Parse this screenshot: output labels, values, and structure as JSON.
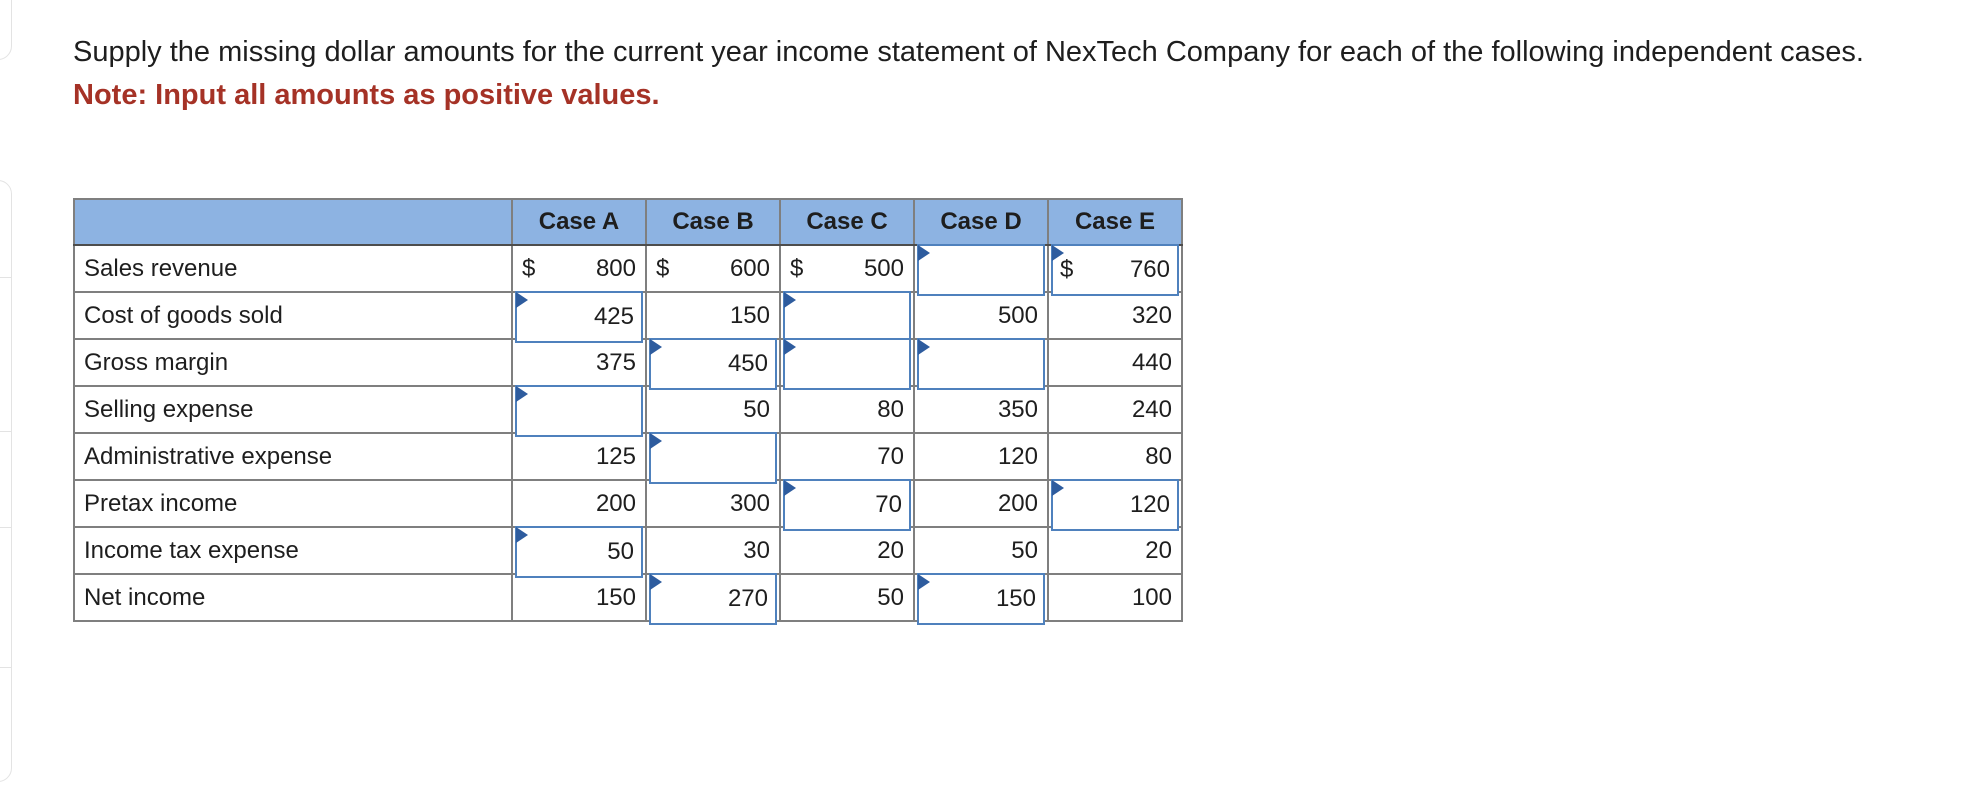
{
  "instructions": {
    "text": "Supply the missing dollar amounts for the current year income statement of NexTech Company for each of the following independent cases.",
    "note": "Note: Input all amounts as positive values."
  },
  "colors": {
    "header_bg": "#8DB3E2",
    "grid_line": "#7F7F7F",
    "outer_border": "#4D4D4D",
    "input_border": "#4F81BD",
    "flag_blue": "#2E5C9E",
    "note_red": "#A53226"
  },
  "table": {
    "corner_label": "",
    "columns": [
      "Case A",
      "Case B",
      "Case C",
      "Case D",
      "Case E"
    ],
    "rows": [
      {
        "label": "Sales revenue",
        "cells": [
          {
            "dollar": "$",
            "text": "800",
            "input": false
          },
          {
            "dollar": "$",
            "text": "600",
            "input": false
          },
          {
            "dollar": "$",
            "text": "500",
            "input": false
          },
          {
            "dollar": "",
            "text": "",
            "input": true
          },
          {
            "dollar": "$",
            "text": "760",
            "input": true
          }
        ]
      },
      {
        "label": "Cost of goods sold",
        "cells": [
          {
            "dollar": "",
            "text": "425",
            "input": true
          },
          {
            "dollar": "",
            "text": "150",
            "input": false
          },
          {
            "dollar": "",
            "text": "",
            "input": true
          },
          {
            "dollar": "",
            "text": "500",
            "input": false
          },
          {
            "dollar": "",
            "text": "320",
            "input": false
          }
        ]
      },
      {
        "label": "Gross margin",
        "cells": [
          {
            "dollar": "",
            "text": "375",
            "input": false
          },
          {
            "dollar": "",
            "text": "450",
            "input": true
          },
          {
            "dollar": "",
            "text": "",
            "input": true
          },
          {
            "dollar": "",
            "text": "",
            "input": true
          },
          {
            "dollar": "",
            "text": "440",
            "input": false
          }
        ]
      },
      {
        "label": "Selling expense",
        "cells": [
          {
            "dollar": "",
            "text": "",
            "input": true
          },
          {
            "dollar": "",
            "text": "50",
            "input": false
          },
          {
            "dollar": "",
            "text": "80",
            "input": false
          },
          {
            "dollar": "",
            "text": "350",
            "input": false
          },
          {
            "dollar": "",
            "text": "240",
            "input": false
          }
        ]
      },
      {
        "label": "Administrative expense",
        "cells": [
          {
            "dollar": "",
            "text": "125",
            "input": false
          },
          {
            "dollar": "",
            "text": "",
            "input": true
          },
          {
            "dollar": "",
            "text": "70",
            "input": false
          },
          {
            "dollar": "",
            "text": "120",
            "input": false
          },
          {
            "dollar": "",
            "text": "80",
            "input": false
          }
        ]
      },
      {
        "label": "Pretax income",
        "cells": [
          {
            "dollar": "",
            "text": "200",
            "input": false
          },
          {
            "dollar": "",
            "text": "300",
            "input": false
          },
          {
            "dollar": "",
            "text": "70",
            "input": true
          },
          {
            "dollar": "",
            "text": "200",
            "input": false
          },
          {
            "dollar": "",
            "text": "120",
            "input": true
          }
        ]
      },
      {
        "label": "Income tax expense",
        "cells": [
          {
            "dollar": "",
            "text": "50",
            "input": true
          },
          {
            "dollar": "",
            "text": "30",
            "input": false
          },
          {
            "dollar": "",
            "text": "20",
            "input": false
          },
          {
            "dollar": "",
            "text": "50",
            "input": false
          },
          {
            "dollar": "",
            "text": "20",
            "input": false
          }
        ]
      },
      {
        "label": "Net income",
        "cells": [
          {
            "dollar": "",
            "text": "150",
            "input": false
          },
          {
            "dollar": "",
            "text": "270",
            "input": true
          },
          {
            "dollar": "",
            "text": "50",
            "input": false
          },
          {
            "dollar": "",
            "text": "150",
            "input": true
          },
          {
            "dollar": "",
            "text": "100",
            "input": false
          }
        ]
      }
    ]
  }
}
